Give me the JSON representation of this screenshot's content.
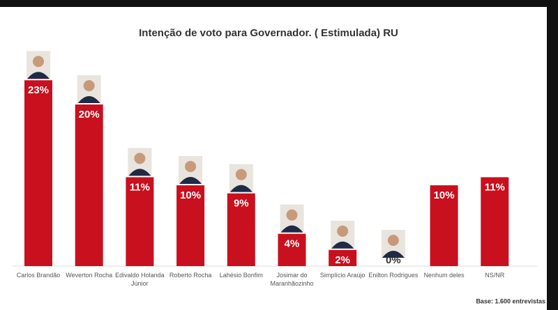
{
  "chart_data": {
    "type": "bar",
    "title": "Intenção de voto para Governador. ( Estimulada) RU",
    "categories": [
      "Carlos Brandão",
      "Weverton Rocha",
      "Edivaldo Holanda Júnior",
      "Roberto Rocha",
      "Lahésio Bonfim",
      "Josimar do Maranhãozinho",
      "Simplício Araújo",
      "Enilton Rodrigues",
      "Nenhum deles",
      "NS/NR"
    ],
    "values": [
      23,
      20,
      11,
      10,
      9,
      4,
      2,
      0,
      10,
      11
    ],
    "value_labels": [
      "23%",
      "20%",
      "11%",
      "10%",
      "9%",
      "4%",
      "2%",
      "0%",
      "10%",
      "11%"
    ],
    "color": "#c8101e",
    "note": "Base: 1.600 entrevistas"
  }
}
